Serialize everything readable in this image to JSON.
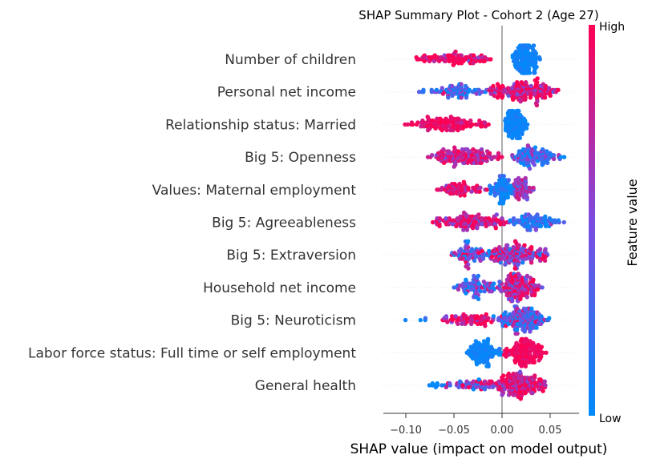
{
  "chart_data": {
    "type": "scatter",
    "subtype": "beeswarm",
    "title": "SHAP Summary Plot - Cohort 2 (Age 27)",
    "xlabel": "SHAP value (impact on model output)",
    "xlim": [
      -0.12,
      0.075
    ],
    "x_ticks": [
      -0.1,
      -0.05,
      0.0,
      0.05
    ],
    "x_tick_labels": [
      "−0.10",
      "−0.05",
      "0.00",
      "0.05"
    ],
    "grid": false,
    "colorbar": {
      "label": "Feature value",
      "high_label": "High",
      "low_label": "Low",
      "low_color": "#008afb",
      "mid_color": "#7d4be0",
      "high_color": "#ff0052",
      "placement": "right"
    },
    "features": [
      {
        "name": "Number of children",
        "x_range": [
          -0.1,
          0.04
        ],
        "clusters": [
          {
            "x_min": -0.1,
            "x_max": 0.0,
            "color_value": 0.95,
            "jitter": 0.2,
            "n": 95
          },
          {
            "x_min": 0.01,
            "x_max": 0.04,
            "color_value": 0.05,
            "jitter": 0.05,
            "n": 140
          }
        ]
      },
      {
        "name": "Personal net income",
        "x_range": [
          -0.09,
          0.065
        ],
        "clusters": [
          {
            "x_min": -0.09,
            "x_max": -0.005,
            "color_value": 0.25,
            "jitter": 0.25,
            "n": 80
          },
          {
            "x_min": -0.02,
            "x_max": 0.065,
            "color_value": 0.85,
            "jitter": 0.25,
            "n": 160
          }
        ]
      },
      {
        "name": "Relationship status: Married",
        "x_range": [
          -0.105,
          0.03
        ],
        "clusters": [
          {
            "x_min": -0.105,
            "x_max": -0.01,
            "color_value": 0.95,
            "jitter": 0.1,
            "n": 120
          },
          {
            "x_min": 0.0,
            "x_max": 0.03,
            "color_value": 0.05,
            "jitter": 0.05,
            "n": 110
          }
        ]
      },
      {
        "name": "Big 5: Openness",
        "x_range": [
          -0.08,
          0.07
        ],
        "clusters": [
          {
            "x_min": -0.08,
            "x_max": 0.005,
            "color_value": 0.8,
            "jitter": 0.2,
            "n": 150
          },
          {
            "x_min": 0.0,
            "x_max": 0.07,
            "color_value": 0.25,
            "jitter": 0.25,
            "n": 110
          }
        ]
      },
      {
        "name": "Values: Maternal employment",
        "x_range": [
          -0.075,
          0.035
        ],
        "clusters": [
          {
            "x_min": -0.075,
            "x_max": -0.01,
            "color_value": 0.9,
            "jitter": 0.15,
            "n": 70
          },
          {
            "x_min": -0.015,
            "x_max": 0.015,
            "color_value": 0.1,
            "jitter": 0.15,
            "n": 90
          },
          {
            "x_min": 0.01,
            "x_max": 0.035,
            "color_value": 0.6,
            "jitter": 0.15,
            "n": 60
          }
        ]
      },
      {
        "name": "Big 5: Agreeableness",
        "x_range": [
          -0.08,
          0.065
        ],
        "clusters": [
          {
            "x_min": -0.08,
            "x_max": 0.01,
            "color_value": 0.85,
            "jitter": 0.2,
            "n": 130
          },
          {
            "x_min": 0.005,
            "x_max": 0.065,
            "color_value": 0.15,
            "jitter": 0.2,
            "n": 90
          }
        ]
      },
      {
        "name": "Big 5: Extraversion",
        "x_range": [
          -0.055,
          0.05
        ],
        "clusters": [
          {
            "x_min": -0.055,
            "x_max": -0.01,
            "color_value": 0.45,
            "jitter": 0.35,
            "n": 80
          },
          {
            "x_min": -0.02,
            "x_max": 0.05,
            "color_value": 0.7,
            "jitter": 0.35,
            "n": 160
          }
        ]
      },
      {
        "name": "Household net income",
        "x_range": [
          -0.05,
          0.045
        ],
        "clusters": [
          {
            "x_min": -0.05,
            "x_max": -0.005,
            "color_value": 0.3,
            "jitter": 0.3,
            "n": 80
          },
          {
            "x_min": -0.01,
            "x_max": 0.045,
            "color_value": 0.8,
            "jitter": 0.3,
            "n": 150
          }
        ]
      },
      {
        "name": "Big 5: Neuroticism",
        "x_range": [
          -0.11,
          0.055
        ],
        "clusters": [
          {
            "x_min": -0.11,
            "x_max": -0.075,
            "color_value": 0.1,
            "jitter": 0.1,
            "n": 4
          },
          {
            "x_min": -0.065,
            "x_max": 0.0,
            "color_value": 0.85,
            "jitter": 0.25,
            "n": 70
          },
          {
            "x_min": -0.01,
            "x_max": 0.055,
            "color_value": 0.35,
            "jitter": 0.3,
            "n": 160
          }
        ]
      },
      {
        "name": "Labor force status: Full time or self employment",
        "x_range": [
          -0.04,
          0.05
        ],
        "clusters": [
          {
            "x_min": -0.04,
            "x_max": 0.0,
            "color_value": 0.05,
            "jitter": 0.05,
            "n": 100
          },
          {
            "x_min": 0.0,
            "x_max": 0.05,
            "color_value": 0.95,
            "jitter": 0.05,
            "n": 140
          }
        ]
      },
      {
        "name": "General health",
        "x_range": [
          -0.085,
          0.05
        ],
        "clusters": [
          {
            "x_min": -0.085,
            "x_max": -0.055,
            "color_value": 0.05,
            "jitter": 0.1,
            "n": 10
          },
          {
            "x_min": -0.06,
            "x_max": 0.0,
            "color_value": 0.55,
            "jitter": 0.3,
            "n": 50
          },
          {
            "x_min": -0.015,
            "x_max": 0.05,
            "color_value": 0.85,
            "jitter": 0.2,
            "n": 170
          }
        ]
      }
    ]
  }
}
